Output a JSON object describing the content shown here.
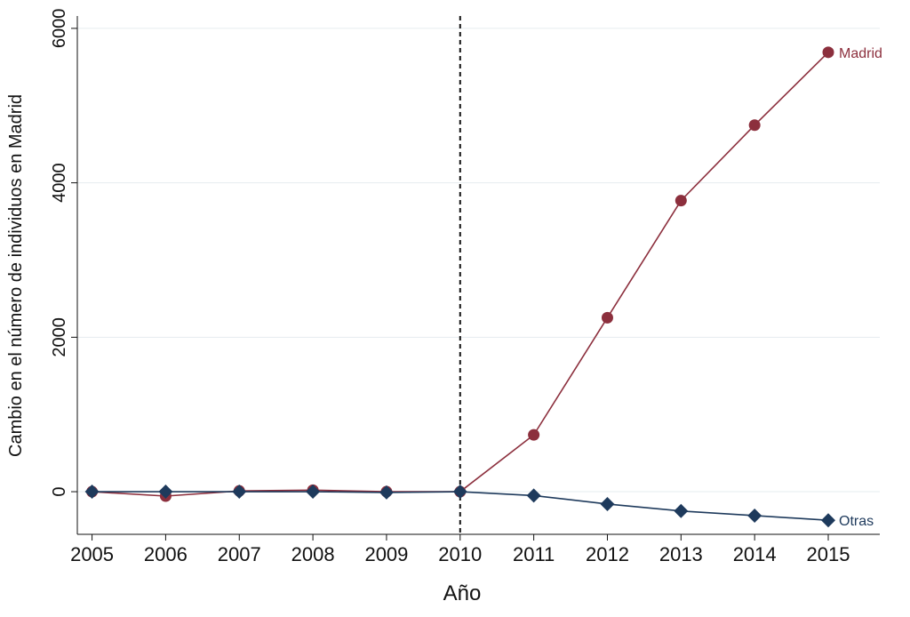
{
  "chart_data": {
    "type": "line",
    "y_label": "Cambio en el número de individuos en Madrid",
    "x_label": "Año",
    "x": [
      2005,
      2006,
      2007,
      2008,
      2009,
      2010,
      2011,
      2012,
      2013,
      2014,
      2015
    ],
    "series": [
      {
        "name": "Madrid",
        "color": "#8c2f3d",
        "marker": "circle",
        "values": [
          0,
          -57,
          10,
          20,
          0,
          0,
          736,
          2253,
          3770,
          4747,
          5690
        ]
      },
      {
        "name": "Otras",
        "color": "#1e3a5c",
        "marker": "diamond",
        "values": [
          0,
          0,
          0,
          0,
          -10,
          0,
          -50,
          -160,
          -250,
          -310,
          -370
        ]
      }
    ],
    "xlim": [
      2004.8,
      2015.7
    ],
    "xticks": [
      2005,
      2006,
      2007,
      2008,
      2009,
      2010,
      2011,
      2012,
      2013,
      2014,
      2015
    ],
    "ylim": [
      -552,
      6160
    ],
    "yticks": [
      0,
      2000,
      4000,
      6000
    ],
    "grid": true,
    "vline": 2010
  }
}
